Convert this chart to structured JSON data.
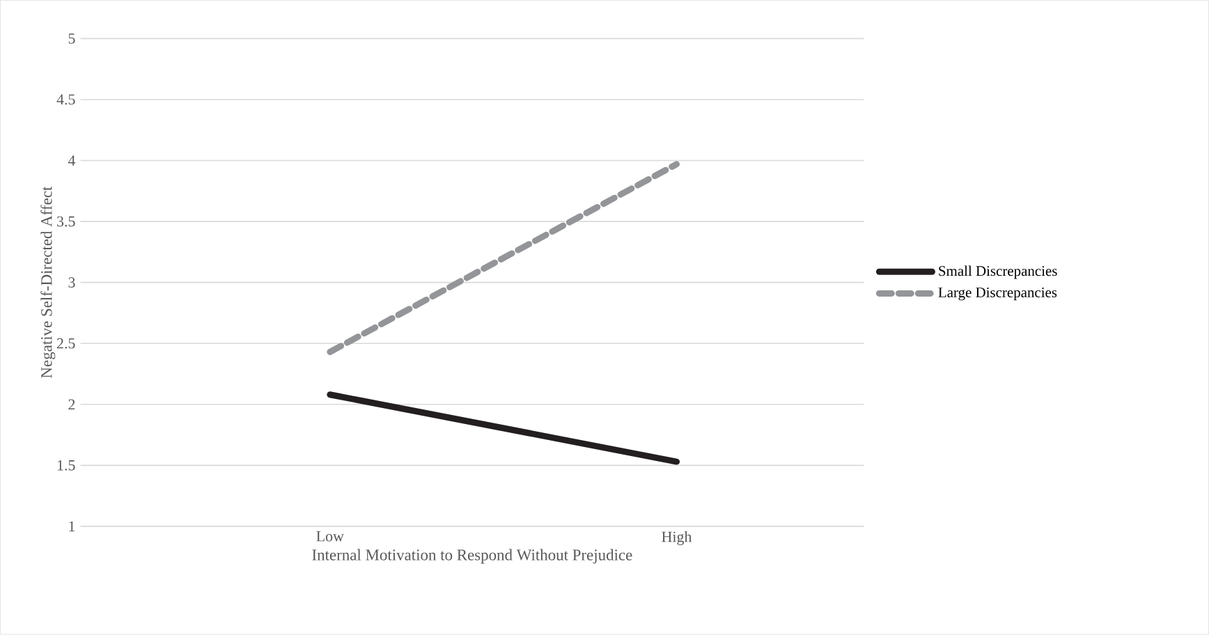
{
  "chart_data": {
    "type": "line",
    "xlabel": "Internal Motivation to Respond Without Prejudice",
    "ylabel": "Negative Self-Directed Affect",
    "categories": [
      "Low",
      "High"
    ],
    "series": [
      {
        "name": "Small Discrepancies",
        "color": "#231f20",
        "line_style": "solid",
        "values": [
          2.08,
          1.53
        ]
      },
      {
        "name": "Large Discrepancies",
        "color": "#939598",
        "line_style": "dashed",
        "values": [
          2.43,
          3.97
        ]
      }
    ],
    "ylim": [
      1,
      5
    ],
    "yticks": [
      1,
      1.5,
      2,
      2.5,
      3,
      3.5,
      4,
      4.5,
      5
    ],
    "grid": "y",
    "legend": "right",
    "marker": "none"
  }
}
